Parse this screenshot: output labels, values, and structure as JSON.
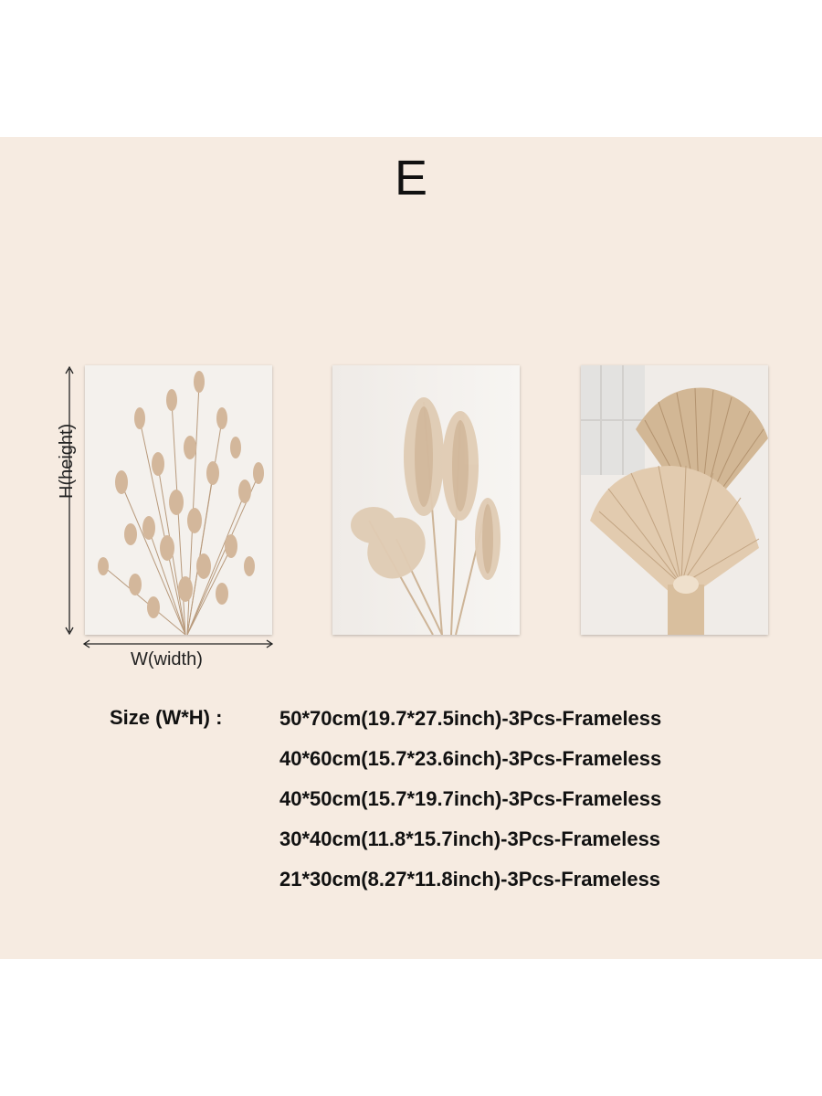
{
  "title": "E",
  "dimension_labels": {
    "height": "H(height)",
    "width": "W(width)"
  },
  "posters": [
    {
      "subject": "bunny tail grass bouquet"
    },
    {
      "subject": "pampas grass plumes"
    },
    {
      "subject": "dried palm fan leaves"
    }
  ],
  "size_section": {
    "label": "Size (W*H) :",
    "options": [
      "50*70cm(19.7*27.5inch)-3Pcs-Frameless",
      "40*60cm(15.7*23.6inch)-3Pcs-Frameless",
      "40*50cm(15.7*19.7inch)-3Pcs-Frameless",
      "30*40cm(11.8*15.7inch)-3Pcs-Frameless",
      "21*30cm(8.27*11.8inch)-3Pcs-Frameless"
    ]
  },
  "colors": {
    "background": "#f6ebe1",
    "text": "#111111",
    "plant_tan": "#c9a98a"
  }
}
